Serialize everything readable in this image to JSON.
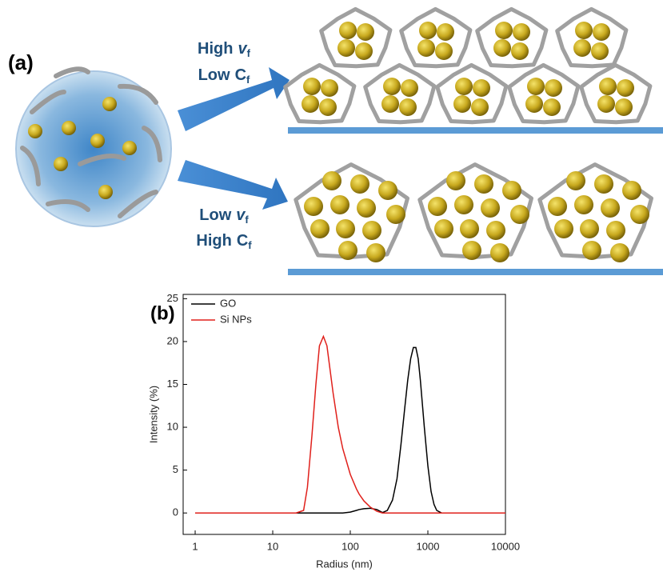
{
  "diagram": {
    "panel_label": "(a)",
    "arrow_labels": [
      [
        {
          "word": "High",
          "symbol": "v",
          "sub": "f"
        },
        {
          "word": "Low",
          "symbol": "C",
          "sub": "f"
        }
      ],
      [
        {
          "word": "Low",
          "symbol": "v",
          "sub": "f"
        },
        {
          "word": "High",
          "symbol": "C",
          "sub": "f"
        }
      ]
    ]
  },
  "chart_data": {
    "type": "line",
    "annotation": "(b)",
    "x_label": "Radius (nm)",
    "y_label": "Intensity (%)",
    "x_scale": "log",
    "xlim": [
      0.7,
      10000
    ],
    "xticks": [
      1,
      10,
      100,
      1000,
      10000
    ],
    "ylim": [
      -2.5,
      25.5
    ],
    "yticks": [
      0,
      5,
      10,
      15,
      20,
      25
    ],
    "legend": "upper left",
    "x": [
      1,
      20,
      25,
      28,
      32,
      36,
      40,
      45,
      50,
      60,
      70,
      80,
      100,
      120,
      130,
      150,
      180,
      220,
      260,
      300,
      350,
      400,
      450,
      500,
      550,
      600,
      650,
      700,
      750,
      800,
      900,
      1000,
      1100,
      1200,
      1300,
      1500,
      2000,
      10000
    ],
    "series": [
      {
        "name": "GO",
        "color": "#000000",
        "values": [
          0,
          0,
          0,
          0,
          0,
          0,
          0,
          0,
          0,
          0,
          0,
          0,
          0.1,
          0.3,
          0.4,
          0.5,
          0.55,
          0.4,
          0.05,
          0.3,
          1.5,
          4,
          8,
          12,
          15.5,
          18,
          19.3,
          19.3,
          18,
          15.5,
          10,
          5.5,
          2.5,
          1,
          0.3,
          0,
          0,
          0
        ]
      },
      {
        "name": "Si NPs",
        "color": "#e0201b",
        "values": [
          0,
          0,
          0.3,
          3,
          9,
          15,
          19.5,
          20.6,
          19.5,
          14,
          10,
          7.5,
          4.5,
          2.8,
          2.2,
          1.4,
          0.7,
          0.2,
          0,
          0,
          0,
          0,
          0,
          0,
          0,
          0,
          0,
          0,
          0,
          0,
          0,
          0,
          0,
          0,
          0,
          0,
          0,
          0
        ]
      }
    ]
  }
}
